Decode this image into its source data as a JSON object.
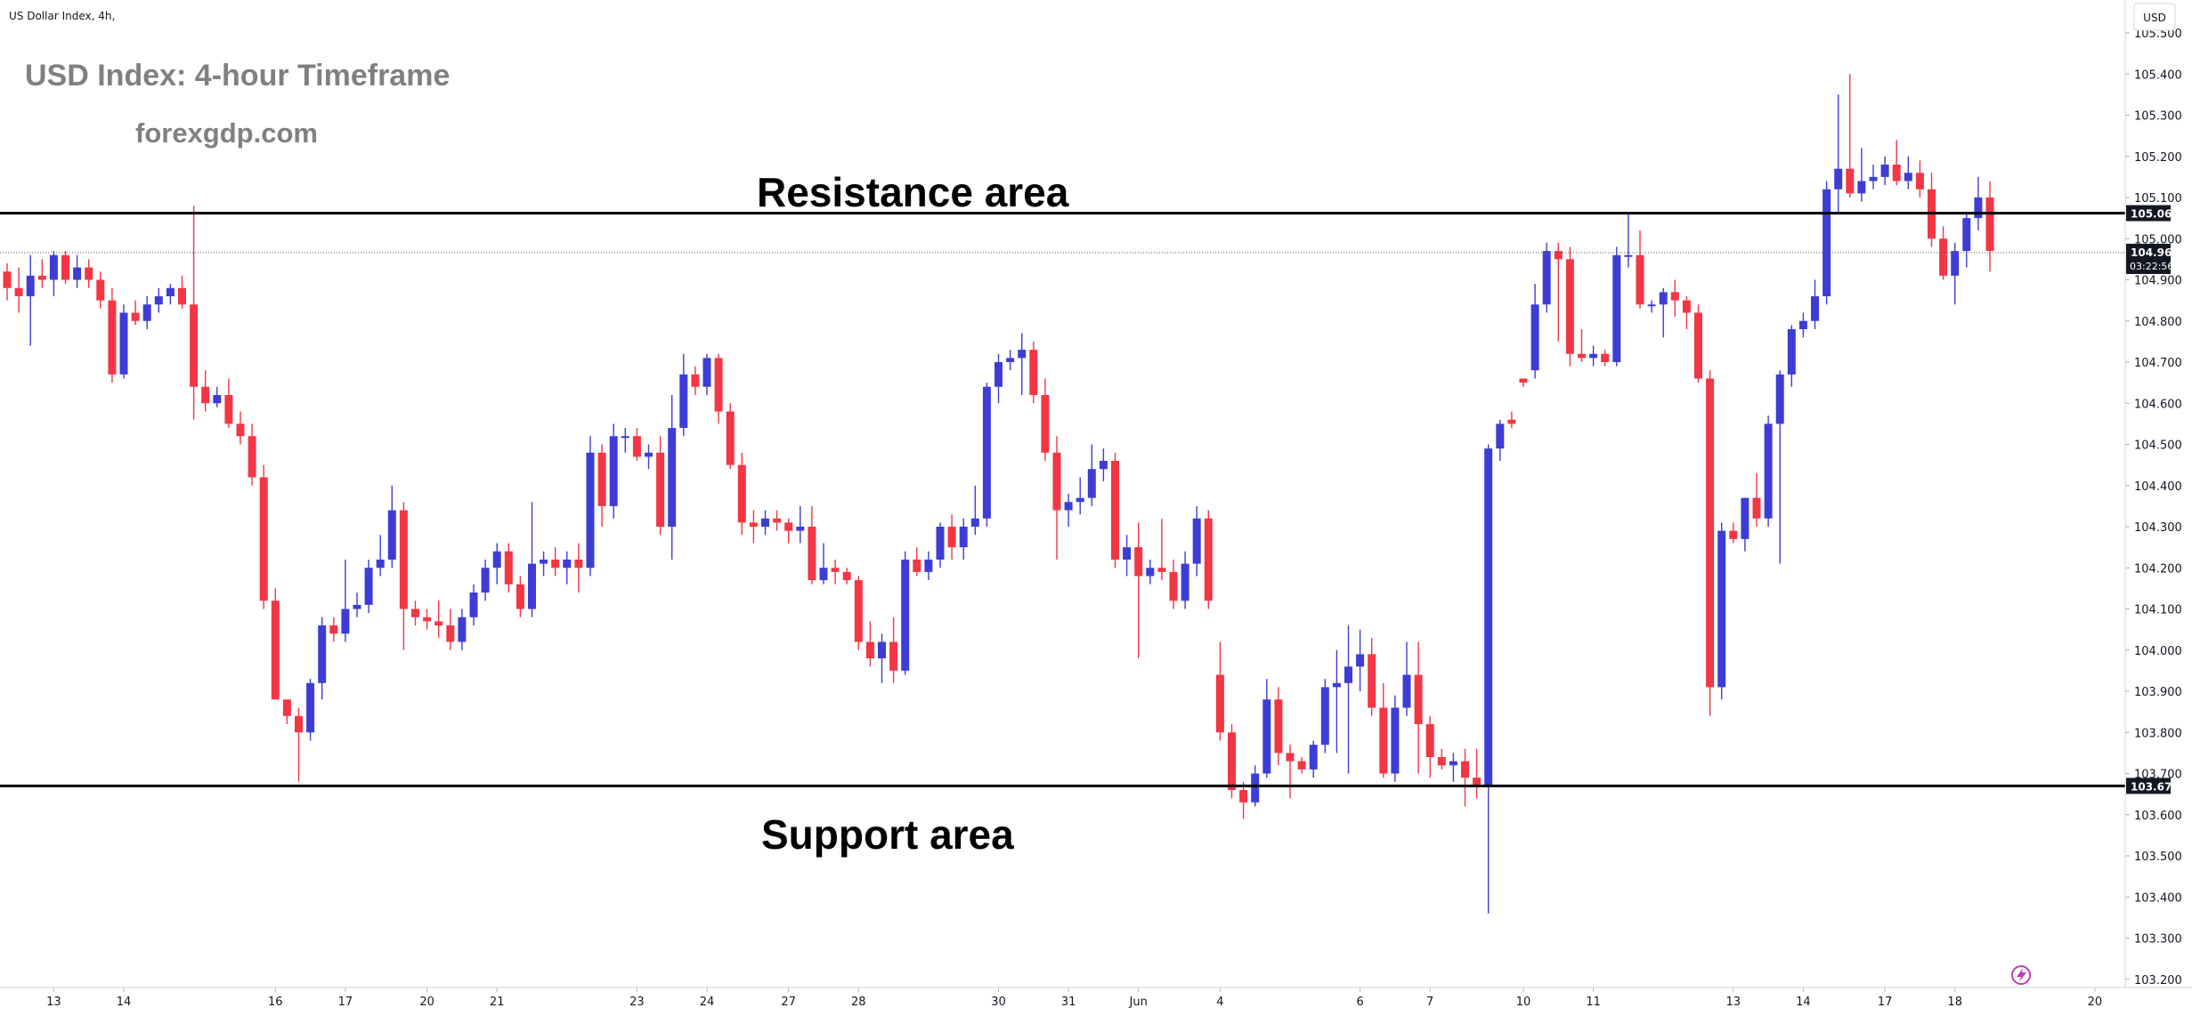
{
  "chart_data": {
    "type": "candlestick",
    "symbol_label": "US Dollar Index, 4h,",
    "title": "USD Index: 4-hour Timeframe",
    "watermark": "forexgdp.com",
    "currency_label": "USD",
    "y_range": [
      103.18,
      105.58
    ],
    "y_ticks": [
      "105.500",
      "105.400",
      "105.300",
      "105.200",
      "105.100",
      "105.000",
      "104.900",
      "104.800",
      "104.700",
      "104.600",
      "104.500",
      "104.400",
      "104.300",
      "104.200",
      "104.100",
      "104.000",
      "103.900",
      "103.800",
      "103.700",
      "103.600",
      "103.500",
      "103.400",
      "103.300",
      "103.200"
    ],
    "x_labels": [
      {
        "label": "13",
        "i": 4
      },
      {
        "label": "14",
        "i": 10
      },
      {
        "label": "16",
        "i": 23
      },
      {
        "label": "17",
        "i": 29
      },
      {
        "label": "20",
        "i": 36
      },
      {
        "label": "21",
        "i": 42
      },
      {
        "label": "23",
        "i": 54
      },
      {
        "label": "24",
        "i": 60
      },
      {
        "label": "27",
        "i": 67
      },
      {
        "label": "28",
        "i": 73
      },
      {
        "label": "30",
        "i": 85
      },
      {
        "label": "31",
        "i": 91
      },
      {
        "label": "Jun",
        "i": 97
      },
      {
        "label": "4",
        "i": 104
      },
      {
        "label": "6",
        "i": 116
      },
      {
        "label": "7",
        "i": 122
      },
      {
        "label": "10",
        "i": 130
      },
      {
        "label": "11",
        "i": 136
      },
      {
        "label": "13",
        "i": 148
      },
      {
        "label": "14",
        "i": 154
      },
      {
        "label": "17",
        "i": 161
      },
      {
        "label": "18",
        "i": 167
      },
      {
        "label": "20",
        "i": 179
      }
    ],
    "levels": [
      {
        "name": "Resistance area",
        "value": 105.062,
        "label": "105.062"
      },
      {
        "name": "Support area",
        "value": 103.67,
        "label": "103.670"
      }
    ],
    "last_price": {
      "value": 104.966,
      "label": "104.966",
      "countdown": "03:22:56"
    },
    "colors": {
      "up": "#3d3dd6",
      "down": "#f23645",
      "level": "#000000",
      "badge": "#131722",
      "title": "#808080"
    },
    "candles": [
      [
        104.92,
        104.94,
        104.85,
        104.88
      ],
      [
        104.88,
        104.93,
        104.82,
        104.86
      ],
      [
        104.86,
        104.96,
        104.74,
        104.91
      ],
      [
        104.91,
        104.95,
        104.88,
        104.9
      ],
      [
        104.9,
        104.97,
        104.86,
        104.96
      ],
      [
        104.96,
        104.97,
        104.89,
        104.9
      ],
      [
        104.9,
        104.96,
        104.88,
        104.93
      ],
      [
        104.93,
        104.95,
        104.88,
        104.9
      ],
      [
        104.9,
        104.92,
        104.83,
        104.85
      ],
      [
        104.85,
        104.88,
        104.65,
        104.67
      ],
      [
        104.67,
        104.84,
        104.66,
        104.82
      ],
      [
        104.82,
        104.85,
        104.79,
        104.8
      ],
      [
        104.8,
        104.86,
        104.78,
        104.84
      ],
      [
        104.84,
        104.88,
        104.82,
        104.86
      ],
      [
        104.86,
        104.89,
        104.84,
        104.88
      ],
      [
        104.88,
        104.91,
        104.83,
        104.84
      ],
      [
        104.84,
        105.08,
        104.56,
        104.64
      ],
      [
        104.64,
        104.68,
        104.58,
        104.6
      ],
      [
        104.6,
        104.64,
        104.59,
        104.62
      ],
      [
        104.62,
        104.66,
        104.54,
        104.55
      ],
      [
        104.55,
        104.58,
        104.5,
        104.52
      ],
      [
        104.52,
        104.55,
        104.4,
        104.42
      ],
      [
        104.42,
        104.45,
        104.1,
        104.12
      ],
      [
        104.12,
        104.15,
        103.88,
        103.88
      ],
      [
        103.88,
        103.86,
        103.82,
        103.84
      ],
      [
        103.84,
        103.86,
        103.68,
        103.8
      ],
      [
        103.8,
        103.93,
        103.78,
        103.92
      ],
      [
        103.92,
        104.08,
        103.88,
        104.06
      ],
      [
        104.06,
        104.08,
        104.02,
        104.04
      ],
      [
        104.04,
        104.22,
        104.02,
        104.1
      ],
      [
        104.1,
        104.14,
        104.08,
        104.11
      ],
      [
        104.11,
        104.22,
        104.09,
        104.2
      ],
      [
        104.2,
        104.28,
        104.18,
        104.22
      ],
      [
        104.22,
        104.4,
        104.2,
        104.34
      ],
      [
        104.34,
        104.36,
        104.0,
        104.1
      ],
      [
        104.1,
        104.12,
        104.06,
        104.08
      ],
      [
        104.08,
        104.1,
        104.05,
        104.07
      ],
      [
        104.07,
        104.12,
        104.03,
        104.06
      ],
      [
        104.06,
        104.1,
        104.0,
        104.02
      ],
      [
        104.02,
        104.1,
        104.0,
        104.08
      ],
      [
        104.08,
        104.16,
        104.06,
        104.14
      ],
      [
        104.14,
        104.22,
        104.12,
        104.2
      ],
      [
        104.2,
        104.26,
        104.16,
        104.24
      ],
      [
        104.24,
        104.26,
        104.14,
        104.16
      ],
      [
        104.16,
        104.18,
        104.08,
        104.1
      ],
      [
        104.1,
        104.36,
        104.08,
        104.21
      ],
      [
        104.21,
        104.24,
        104.18,
        104.22
      ],
      [
        104.22,
        104.25,
        104.18,
        104.2
      ],
      [
        104.2,
        104.24,
        104.16,
        104.22
      ],
      [
        104.22,
        104.26,
        104.14,
        104.2
      ],
      [
        104.2,
        104.52,
        104.18,
        104.48
      ],
      [
        104.48,
        104.5,
        104.3,
        104.35
      ],
      [
        104.35,
        104.55,
        104.32,
        104.52
      ],
      [
        104.52,
        104.54,
        104.48,
        104.52
      ],
      [
        104.52,
        104.54,
        104.46,
        104.47
      ],
      [
        104.47,
        104.5,
        104.44,
        104.48
      ],
      [
        104.48,
        104.52,
        104.28,
        104.3
      ],
      [
        104.3,
        104.62,
        104.22,
        104.54
      ],
      [
        104.54,
        104.72,
        104.52,
        104.67
      ],
      [
        104.67,
        104.69,
        104.62,
        104.64
      ],
      [
        104.64,
        104.72,
        104.62,
        104.71
      ],
      [
        104.71,
        104.72,
        104.55,
        104.58
      ],
      [
        104.58,
        104.6,
        104.44,
        104.45
      ],
      [
        104.45,
        104.48,
        104.28,
        104.31
      ],
      [
        104.31,
        104.34,
        104.26,
        104.3
      ],
      [
        104.3,
        104.34,
        104.28,
        104.32
      ],
      [
        104.32,
        104.34,
        104.29,
        104.31
      ],
      [
        104.31,
        104.32,
        104.26,
        104.29
      ],
      [
        104.29,
        104.35,
        104.26,
        104.3
      ],
      [
        104.3,
        104.35,
        104.16,
        104.17
      ],
      [
        104.17,
        104.26,
        104.16,
        104.2
      ],
      [
        104.2,
        104.22,
        104.16,
        104.19
      ],
      [
        104.19,
        104.2,
        104.16,
        104.17
      ],
      [
        104.17,
        104.18,
        104.0,
        104.02
      ],
      [
        104.02,
        104.07,
        103.96,
        103.98
      ],
      [
        103.98,
        104.04,
        103.92,
        104.02
      ],
      [
        104.02,
        104.08,
        103.92,
        103.95
      ],
      [
        103.95,
        104.24,
        103.94,
        104.22
      ],
      [
        104.22,
        104.25,
        104.18,
        104.19
      ],
      [
        104.19,
        104.24,
        104.17,
        104.22
      ],
      [
        104.22,
        104.31,
        104.2,
        104.3
      ],
      [
        104.3,
        104.33,
        104.22,
        104.25
      ],
      [
        104.25,
        104.32,
        104.22,
        104.3
      ],
      [
        104.3,
        104.4,
        104.28,
        104.32
      ],
      [
        104.32,
        104.65,
        104.3,
        104.64
      ],
      [
        104.64,
        104.72,
        104.6,
        104.7
      ],
      [
        104.7,
        104.73,
        104.68,
        104.71
      ],
      [
        104.71,
        104.77,
        104.62,
        104.73
      ],
      [
        104.73,
        104.75,
        104.6,
        104.62
      ],
      [
        104.62,
        104.66,
        104.46,
        104.48
      ],
      [
        104.48,
        104.52,
        104.22,
        104.34
      ],
      [
        104.34,
        104.38,
        104.3,
        104.36
      ],
      [
        104.36,
        104.42,
        104.33,
        104.37
      ],
      [
        104.37,
        104.5,
        104.35,
        104.44
      ],
      [
        104.44,
        104.49,
        104.41,
        104.46
      ],
      [
        104.46,
        104.48,
        104.2,
        104.22
      ],
      [
        104.22,
        104.28,
        104.18,
        104.25
      ],
      [
        104.25,
        104.31,
        103.98,
        104.18
      ],
      [
        104.18,
        104.22,
        104.16,
        104.2
      ],
      [
        104.2,
        104.32,
        104.17,
        104.19
      ],
      [
        104.19,
        104.22,
        104.1,
        104.12
      ],
      [
        104.12,
        104.24,
        104.1,
        104.21
      ],
      [
        104.21,
        104.35,
        104.18,
        104.32
      ],
      [
        104.32,
        104.34,
        104.1,
        104.12
      ],
      [
        103.94,
        104.02,
        103.78,
        103.8
      ],
      [
        103.8,
        103.82,
        103.64,
        103.66
      ],
      [
        103.66,
        103.68,
        103.59,
        103.63
      ],
      [
        103.63,
        103.72,
        103.62,
        103.7
      ],
      [
        103.7,
        103.93,
        103.69,
        103.88
      ],
      [
        103.88,
        103.91,
        103.72,
        103.75
      ],
      [
        103.75,
        103.77,
        103.64,
        103.73
      ],
      [
        103.73,
        103.74,
        103.7,
        103.71
      ],
      [
        103.71,
        103.78,
        103.69,
        103.77
      ],
      [
        103.77,
        103.93,
        103.75,
        103.91
      ],
      [
        103.91,
        104.0,
        103.75,
        103.92
      ],
      [
        103.92,
        104.06,
        103.7,
        103.96
      ],
      [
        103.96,
        104.05,
        103.9,
        103.99
      ],
      [
        103.99,
        104.03,
        103.84,
        103.86
      ],
      [
        103.86,
        103.92,
        103.69,
        103.7
      ],
      [
        103.7,
        103.89,
        103.68,
        103.86
      ],
      [
        103.86,
        104.02,
        103.84,
        103.94
      ],
      [
        103.94,
        104.02,
        103.7,
        103.82
      ],
      [
        103.82,
        103.84,
        103.69,
        103.74
      ],
      [
        103.74,
        103.76,
        103.71,
        103.72
      ],
      [
        103.72,
        103.75,
        103.68,
        103.73
      ],
      [
        103.73,
        103.76,
        103.62,
        103.69
      ],
      [
        103.69,
        103.76,
        103.64,
        103.67
      ],
      [
        103.67,
        104.5,
        103.36,
        104.49
      ],
      [
        104.49,
        104.56,
        104.46,
        104.55
      ],
      [
        104.56,
        104.58,
        104.54,
        104.55
      ],
      [
        104.66,
        104.66,
        104.64,
        104.65
      ],
      [
        104.68,
        104.89,
        104.66,
        104.84
      ],
      [
        104.84,
        104.99,
        104.82,
        104.97
      ],
      [
        104.97,
        104.99,
        104.75,
        104.95
      ],
      [
        104.95,
        104.98,
        104.69,
        104.72
      ],
      [
        104.72,
        104.78,
        104.7,
        104.71
      ],
      [
        104.71,
        104.74,
        104.69,
        104.72
      ],
      [
        104.72,
        104.73,
        104.69,
        104.7
      ],
      [
        104.7,
        104.98,
        104.69,
        104.96
      ],
      [
        104.96,
        105.06,
        104.93,
        104.96
      ],
      [
        104.96,
        105.02,
        104.83,
        104.84
      ],
      [
        104.84,
        104.85,
        104.82,
        104.84
      ],
      [
        104.84,
        104.88,
        104.76,
        104.87
      ],
      [
        104.87,
        104.9,
        104.81,
        104.85
      ],
      [
        104.85,
        104.86,
        104.78,
        104.82
      ],
      [
        104.82,
        104.84,
        104.65,
        104.66
      ],
      [
        104.66,
        104.68,
        103.84,
        103.91
      ],
      [
        103.91,
        104.31,
        103.88,
        104.29
      ],
      [
        104.29,
        104.31,
        104.26,
        104.27
      ],
      [
        104.27,
        104.37,
        104.24,
        104.37
      ],
      [
        104.37,
        104.43,
        104.3,
        104.32
      ],
      [
        104.32,
        104.57,
        104.3,
        104.55
      ],
      [
        104.55,
        104.68,
        104.21,
        104.67
      ],
      [
        104.67,
        104.79,
        104.64,
        104.78
      ],
      [
        104.78,
        104.82,
        104.76,
        104.8
      ],
      [
        104.8,
        104.9,
        104.78,
        104.86
      ],
      [
        104.86,
        105.14,
        104.84,
        105.12
      ],
      [
        105.12,
        105.35,
        105.06,
        105.17
      ],
      [
        105.17,
        105.4,
        105.1,
        105.11
      ],
      [
        105.11,
        105.22,
        105.09,
        105.14
      ],
      [
        105.14,
        105.18,
        105.12,
        105.15
      ],
      [
        105.15,
        105.2,
        105.13,
        105.18
      ],
      [
        105.18,
        105.24,
        105.13,
        105.14
      ],
      [
        105.14,
        105.2,
        105.12,
        105.16
      ],
      [
        105.16,
        105.19,
        105.1,
        105.12
      ],
      [
        105.12,
        105.16,
        104.98,
        105.0
      ],
      [
        105.0,
        105.03,
        104.9,
        104.91
      ],
      [
        104.91,
        104.99,
        104.84,
        104.97
      ],
      [
        104.97,
        105.06,
        104.93,
        105.05
      ],
      [
        105.05,
        105.15,
        105.02,
        105.1
      ],
      [
        105.1,
        105.14,
        104.92,
        104.97
      ]
    ]
  }
}
